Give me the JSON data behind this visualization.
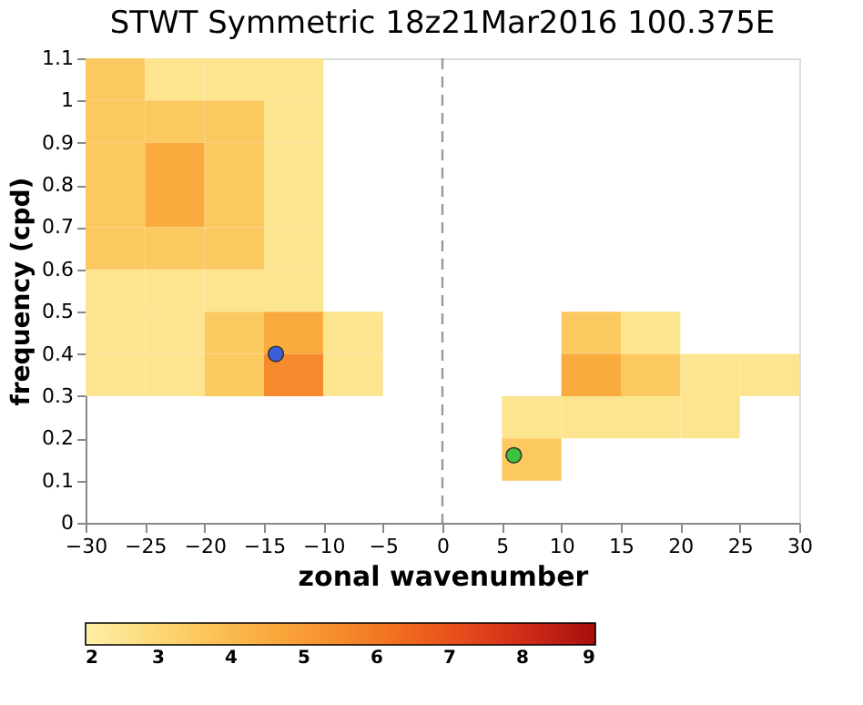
{
  "chart_data": {
    "type": "heatmap",
    "title": "STWT Symmetric 18z21Mar2016 100.375E",
    "xlabel": "zonal wavenumber",
    "ylabel": "frequency (cpd)",
    "x": [
      -27.5,
      -22.5,
      -17.5,
      -12.5,
      -7.5,
      -2.5,
      2.5,
      7.5,
      12.5,
      17.5,
      22.5,
      27.5
    ],
    "y": [
      1.05,
      0.95,
      0.85,
      0.75,
      0.65,
      0.55,
      0.45,
      0.35,
      0.25,
      0.15
    ],
    "cells": [
      [
        3.5,
        2.5,
        2.5,
        2.5,
        null,
        null,
        null,
        null,
        null,
        null,
        null,
        null
      ],
      [
        3.5,
        3.5,
        3.5,
        2.5,
        null,
        null,
        null,
        null,
        null,
        null,
        null,
        null
      ],
      [
        3.5,
        4.5,
        3.5,
        2.5,
        null,
        null,
        null,
        null,
        null,
        null,
        null,
        null
      ],
      [
        3.5,
        4.5,
        3.5,
        2.5,
        null,
        null,
        null,
        null,
        null,
        null,
        null,
        null
      ],
      [
        3.5,
        3.5,
        3.5,
        2.5,
        null,
        null,
        null,
        null,
        null,
        null,
        null,
        null
      ],
      [
        2.5,
        2.5,
        2.5,
        2.5,
        null,
        null,
        null,
        null,
        null,
        null,
        null,
        null
      ],
      [
        2.5,
        2.5,
        3.5,
        4.5,
        2.5,
        null,
        null,
        null,
        3.5,
        2.5,
        null,
        null
      ],
      [
        2.5,
        2.5,
        3.5,
        5.5,
        2.5,
        null,
        null,
        null,
        4.5,
        3.5,
        2.5,
        2.5
      ],
      [
        null,
        null,
        null,
        null,
        null,
        null,
        null,
        2.5,
        2.5,
        2.5,
        2.5,
        null
      ],
      [
        null,
        null,
        null,
        null,
        null,
        null,
        null,
        3.5,
        null,
        null,
        null,
        null
      ]
    ],
    "colors": [
      "#fff0a8",
      "#fdd36e",
      "#fbb042",
      "#f58b2c",
      "#ee5e1e",
      "#d8301a",
      "#a80d0d"
    ],
    "clim": [
      2,
      9
    ],
    "cticks": [
      2,
      3,
      4,
      5,
      6,
      7,
      8,
      9
    ],
    "xlim": [
      -30,
      30
    ],
    "xticks": [
      -30,
      -25,
      -20,
      -15,
      -10,
      -5,
      0,
      5,
      10,
      15,
      20,
      25,
      30
    ],
    "ylim": [
      0,
      1.1
    ],
    "yticks": [
      0,
      0.1,
      0.2,
      0.3,
      0.4,
      0.5,
      0.6,
      0.7,
      0.8,
      0.9,
      1,
      1.1
    ],
    "series": [
      {
        "type": "scatter",
        "color": "#3a5fd8",
        "x": [
          -14
        ],
        "values": [
          0.4
        ]
      },
      {
        "type": "scatter",
        "color": "#3cc23c",
        "x": [
          6
        ],
        "values": [
          0.16
        ]
      }
    ],
    "marker": "circle",
    "ref_lines": [
      {
        "axis": "x",
        "value": 0,
        "color": "#999999",
        "line_style": "dashed"
      }
    ],
    "grid": false
  }
}
